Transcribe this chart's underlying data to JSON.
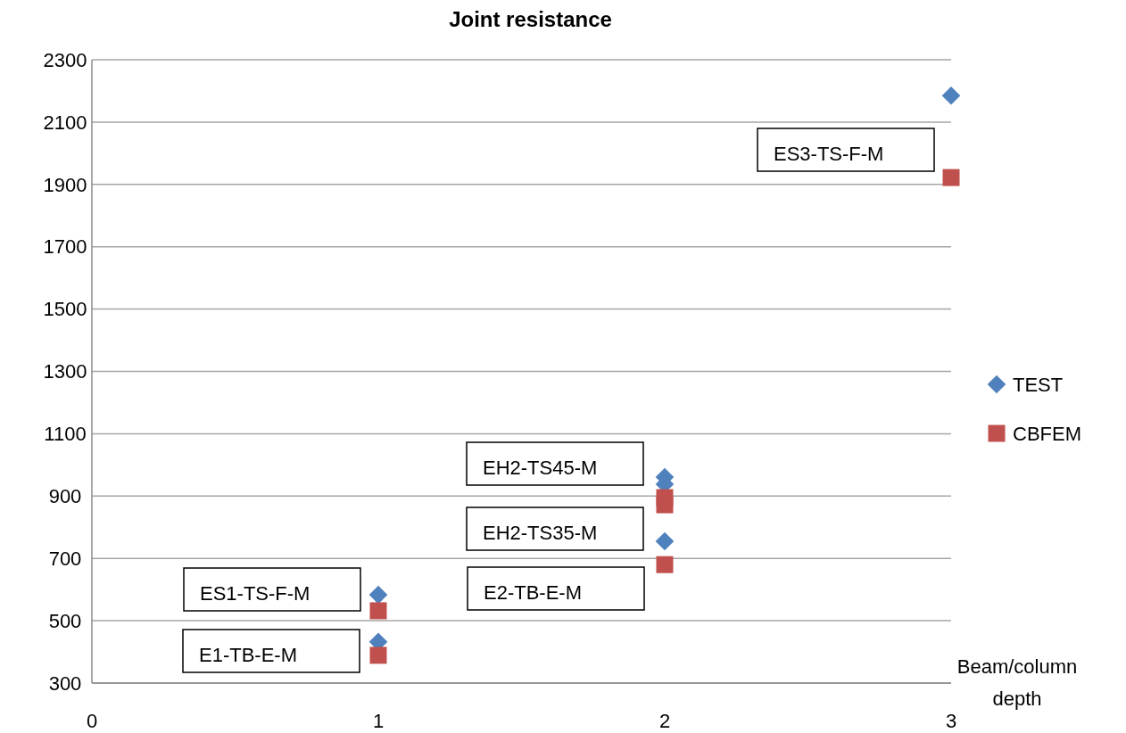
{
  "chart_data": {
    "type": "scatter",
    "title": "Joint resistance",
    "xlabel": "Beam/column depth",
    "xlim": [
      0,
      3
    ],
    "xticks": [
      0,
      1,
      2,
      3
    ],
    "ylim": [
      300,
      2300
    ],
    "yticks": [
      300,
      500,
      700,
      900,
      1100,
      1300,
      1500,
      1700,
      1900,
      2100,
      2300
    ],
    "grid": "y",
    "legend": "right",
    "series": [
      {
        "name": "TEST",
        "color": "#4f81bd",
        "marker": "diamond",
        "x": [
          1,
          1,
          2,
          2,
          2,
          3
        ],
        "values": [
          583,
          432,
          961,
          938,
          755,
          2185
        ]
      },
      {
        "name": "CBFEM",
        "color": "#c0504d",
        "marker": "square",
        "x": [
          1,
          1,
          2,
          2,
          2,
          3
        ],
        "values": [
          532,
          389,
          895,
          872,
          680,
          1922
        ]
      }
    ],
    "annotations": [
      "ES3-TS-F-M",
      "EH2-TS45-M",
      "EH2-TS35-M",
      "ES1-TS-F-M",
      "E2-TB-E-M",
      "E1-TB-E-M"
    ]
  }
}
